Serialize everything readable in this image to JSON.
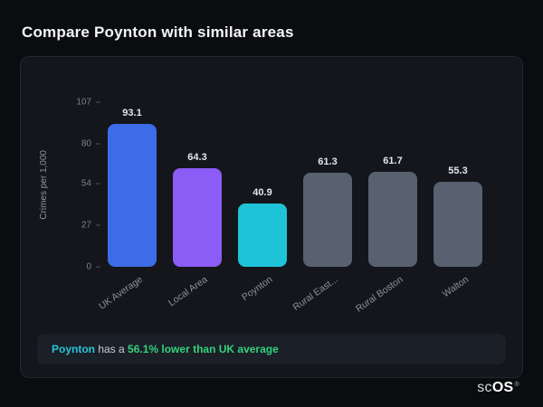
{
  "page": {
    "title": "Compare Poynton with similar areas"
  },
  "footer": {
    "subject": "Poynton",
    "connector": " has a ",
    "highlight": "56.1% lower than UK average"
  },
  "logo": {
    "text_light": "sc",
    "text_bold": "OS",
    "registered": "®"
  },
  "chart_data": {
    "type": "bar",
    "title": "Compare Poynton with similar areas",
    "ylabel": "Crimes per 1,000",
    "xlabel": "",
    "categories": [
      "UK Average",
      "Local Area",
      "Poynton",
      "Rural East...",
      "Rural Boston",
      "Walton"
    ],
    "values": [
      93.1,
      64.3,
      40.9,
      61.3,
      61.7,
      55.3
    ],
    "value_labels": [
      "93.1",
      "64.3",
      "40.9",
      "61.3",
      "61.7",
      "55.3"
    ],
    "colors": [
      "#3d6ce8",
      "#8b5cf6",
      "#1fc3d8",
      "#57616f",
      "#57616f",
      "#57616f"
    ],
    "yticks": [
      0,
      27,
      54,
      80,
      107
    ],
    "ylim": [
      0,
      107
    ],
    "grid": false,
    "legend": false,
    "accent_colors": {
      "poynton": "#26c6da",
      "positive": "#34d17c"
    }
  }
}
